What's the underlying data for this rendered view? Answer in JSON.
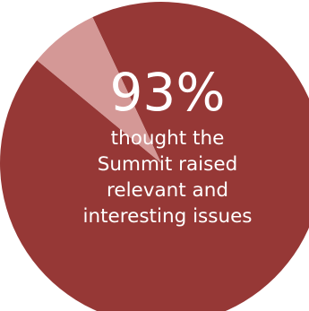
{
  "chart_data": {
    "type": "pie",
    "title": "",
    "slices": [
      {
        "label": "thought the Summit raised relevant and interesting issues",
        "value": 93,
        "color": "#963836"
      },
      {
        "label": "",
        "value": 7,
        "color": "#d49896"
      }
    ],
    "start": "top",
    "direction": "clockwise",
    "highlight_text": "93%",
    "caption_lines": [
      "thought the",
      "Summit raised",
      "relevant and",
      "interesting issues"
    ]
  }
}
